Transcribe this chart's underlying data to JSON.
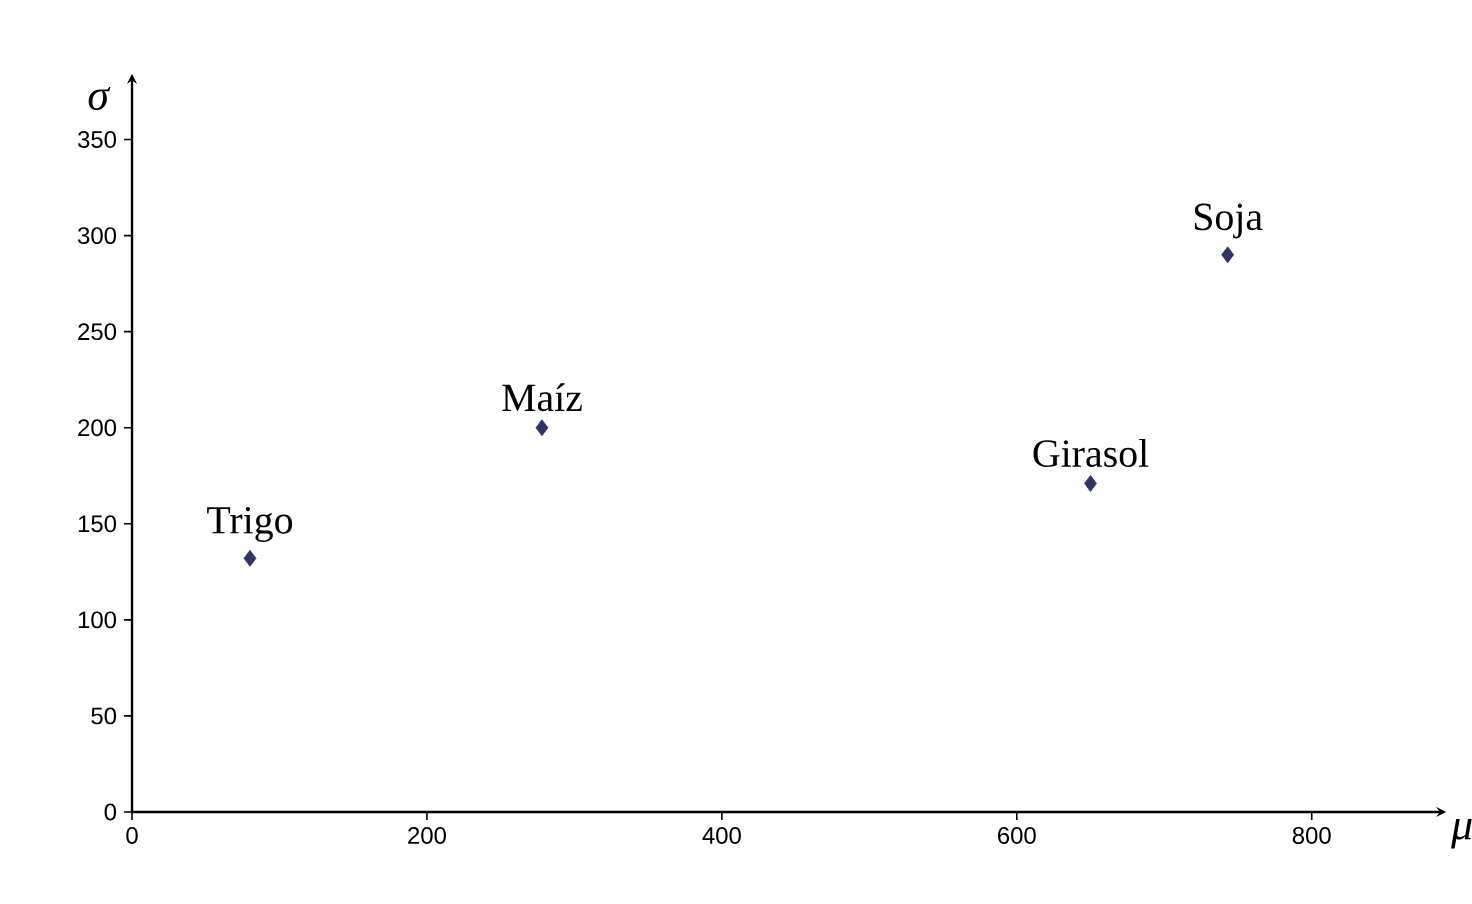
{
  "chart_data": {
    "type": "scatter",
    "xlabel": "μ",
    "ylabel": "σ",
    "x": [
      80,
      278,
      650,
      743
    ],
    "values": [
      132,
      200,
      171,
      290
    ],
    "color": "#333366",
    "marker": "diamond",
    "grid": false,
    "legend": false,
    "xlim": [
      0,
      887
    ],
    "ylim": [
      0,
      381
    ],
    "xticks": [
      0,
      200,
      400,
      600,
      800
    ],
    "yticks": [
      0,
      50,
      100,
      150,
      200,
      250,
      300,
      350
    ],
    "annotations": [
      {
        "text": "Trigo",
        "x": 80,
        "y": 132
      },
      {
        "text": "Maíz",
        "x": 278,
        "y": 200
      },
      {
        "text": "Girasol",
        "x": 650,
        "y": 171
      },
      {
        "text": "Soja",
        "x": 743,
        "y": 290
      }
    ]
  }
}
